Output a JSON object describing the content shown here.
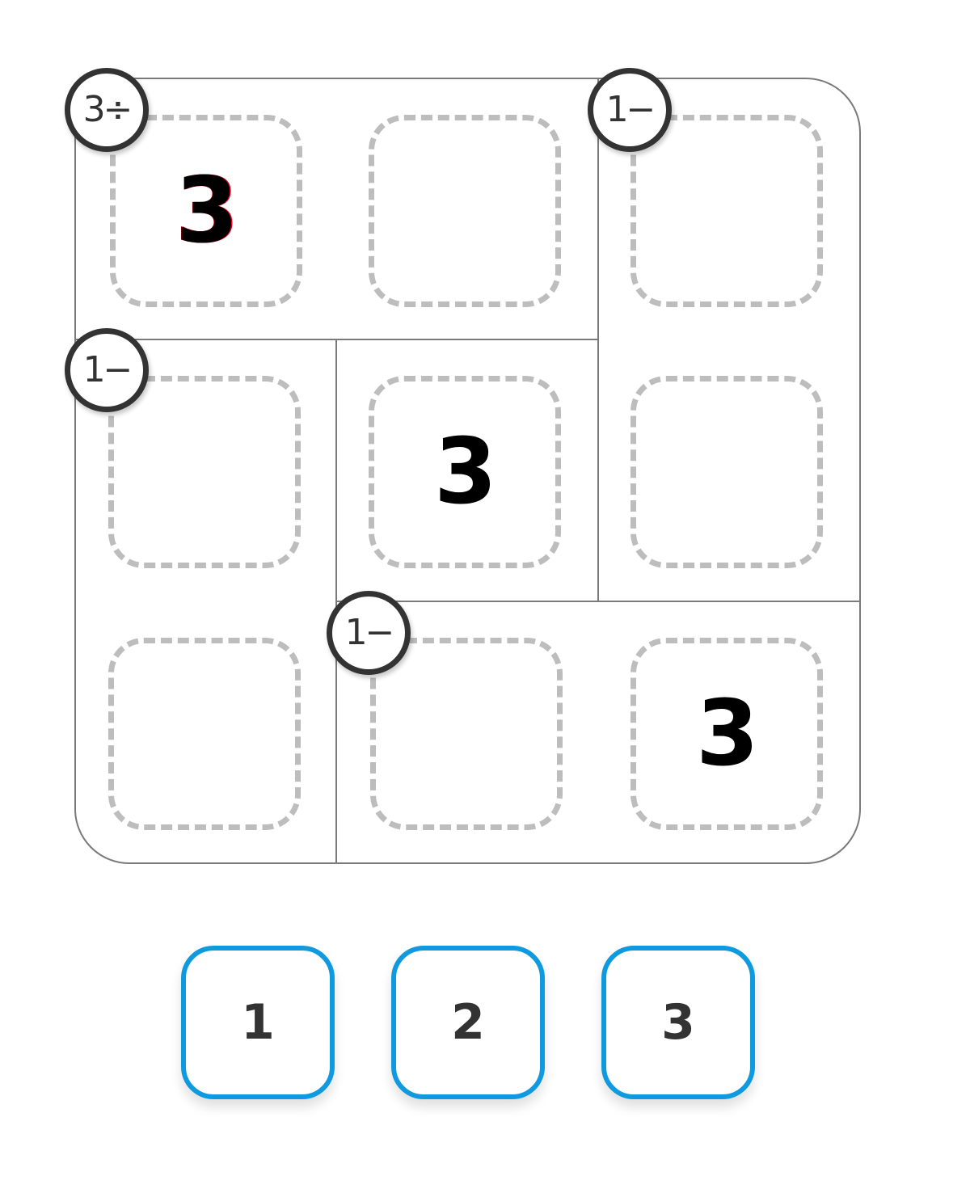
{
  "puzzle": {
    "grid_size": 3,
    "cages": [
      {
        "clue": "3÷",
        "cells": [
          "r1c1",
          "r1c2"
        ]
      },
      {
        "clue": "1−",
        "cells": [
          "r1c3",
          "r2c3"
        ]
      },
      {
        "clue": "1−",
        "cells": [
          "r2c1",
          "r3c1"
        ]
      },
      {
        "clue": "1−",
        "cells": [
          "r3c2",
          "r3c3"
        ]
      },
      {
        "clue": "",
        "cells": [
          "r2c2"
        ]
      }
    ],
    "cells": {
      "r1c1": "3",
      "r1c2": "",
      "r1c3": "",
      "r2c1": "",
      "r2c2": "3",
      "r2c3": "",
      "r3c1": "",
      "r3c2": "",
      "r3c3": "3"
    }
  },
  "keypad": {
    "buttons": [
      "1",
      "2",
      "3"
    ]
  },
  "colors": {
    "keypad_border": "#0f9ae0",
    "cage_border": "#7a7a7a",
    "cell_dash": "#bdbdbd",
    "clue_ring": "#333333"
  }
}
